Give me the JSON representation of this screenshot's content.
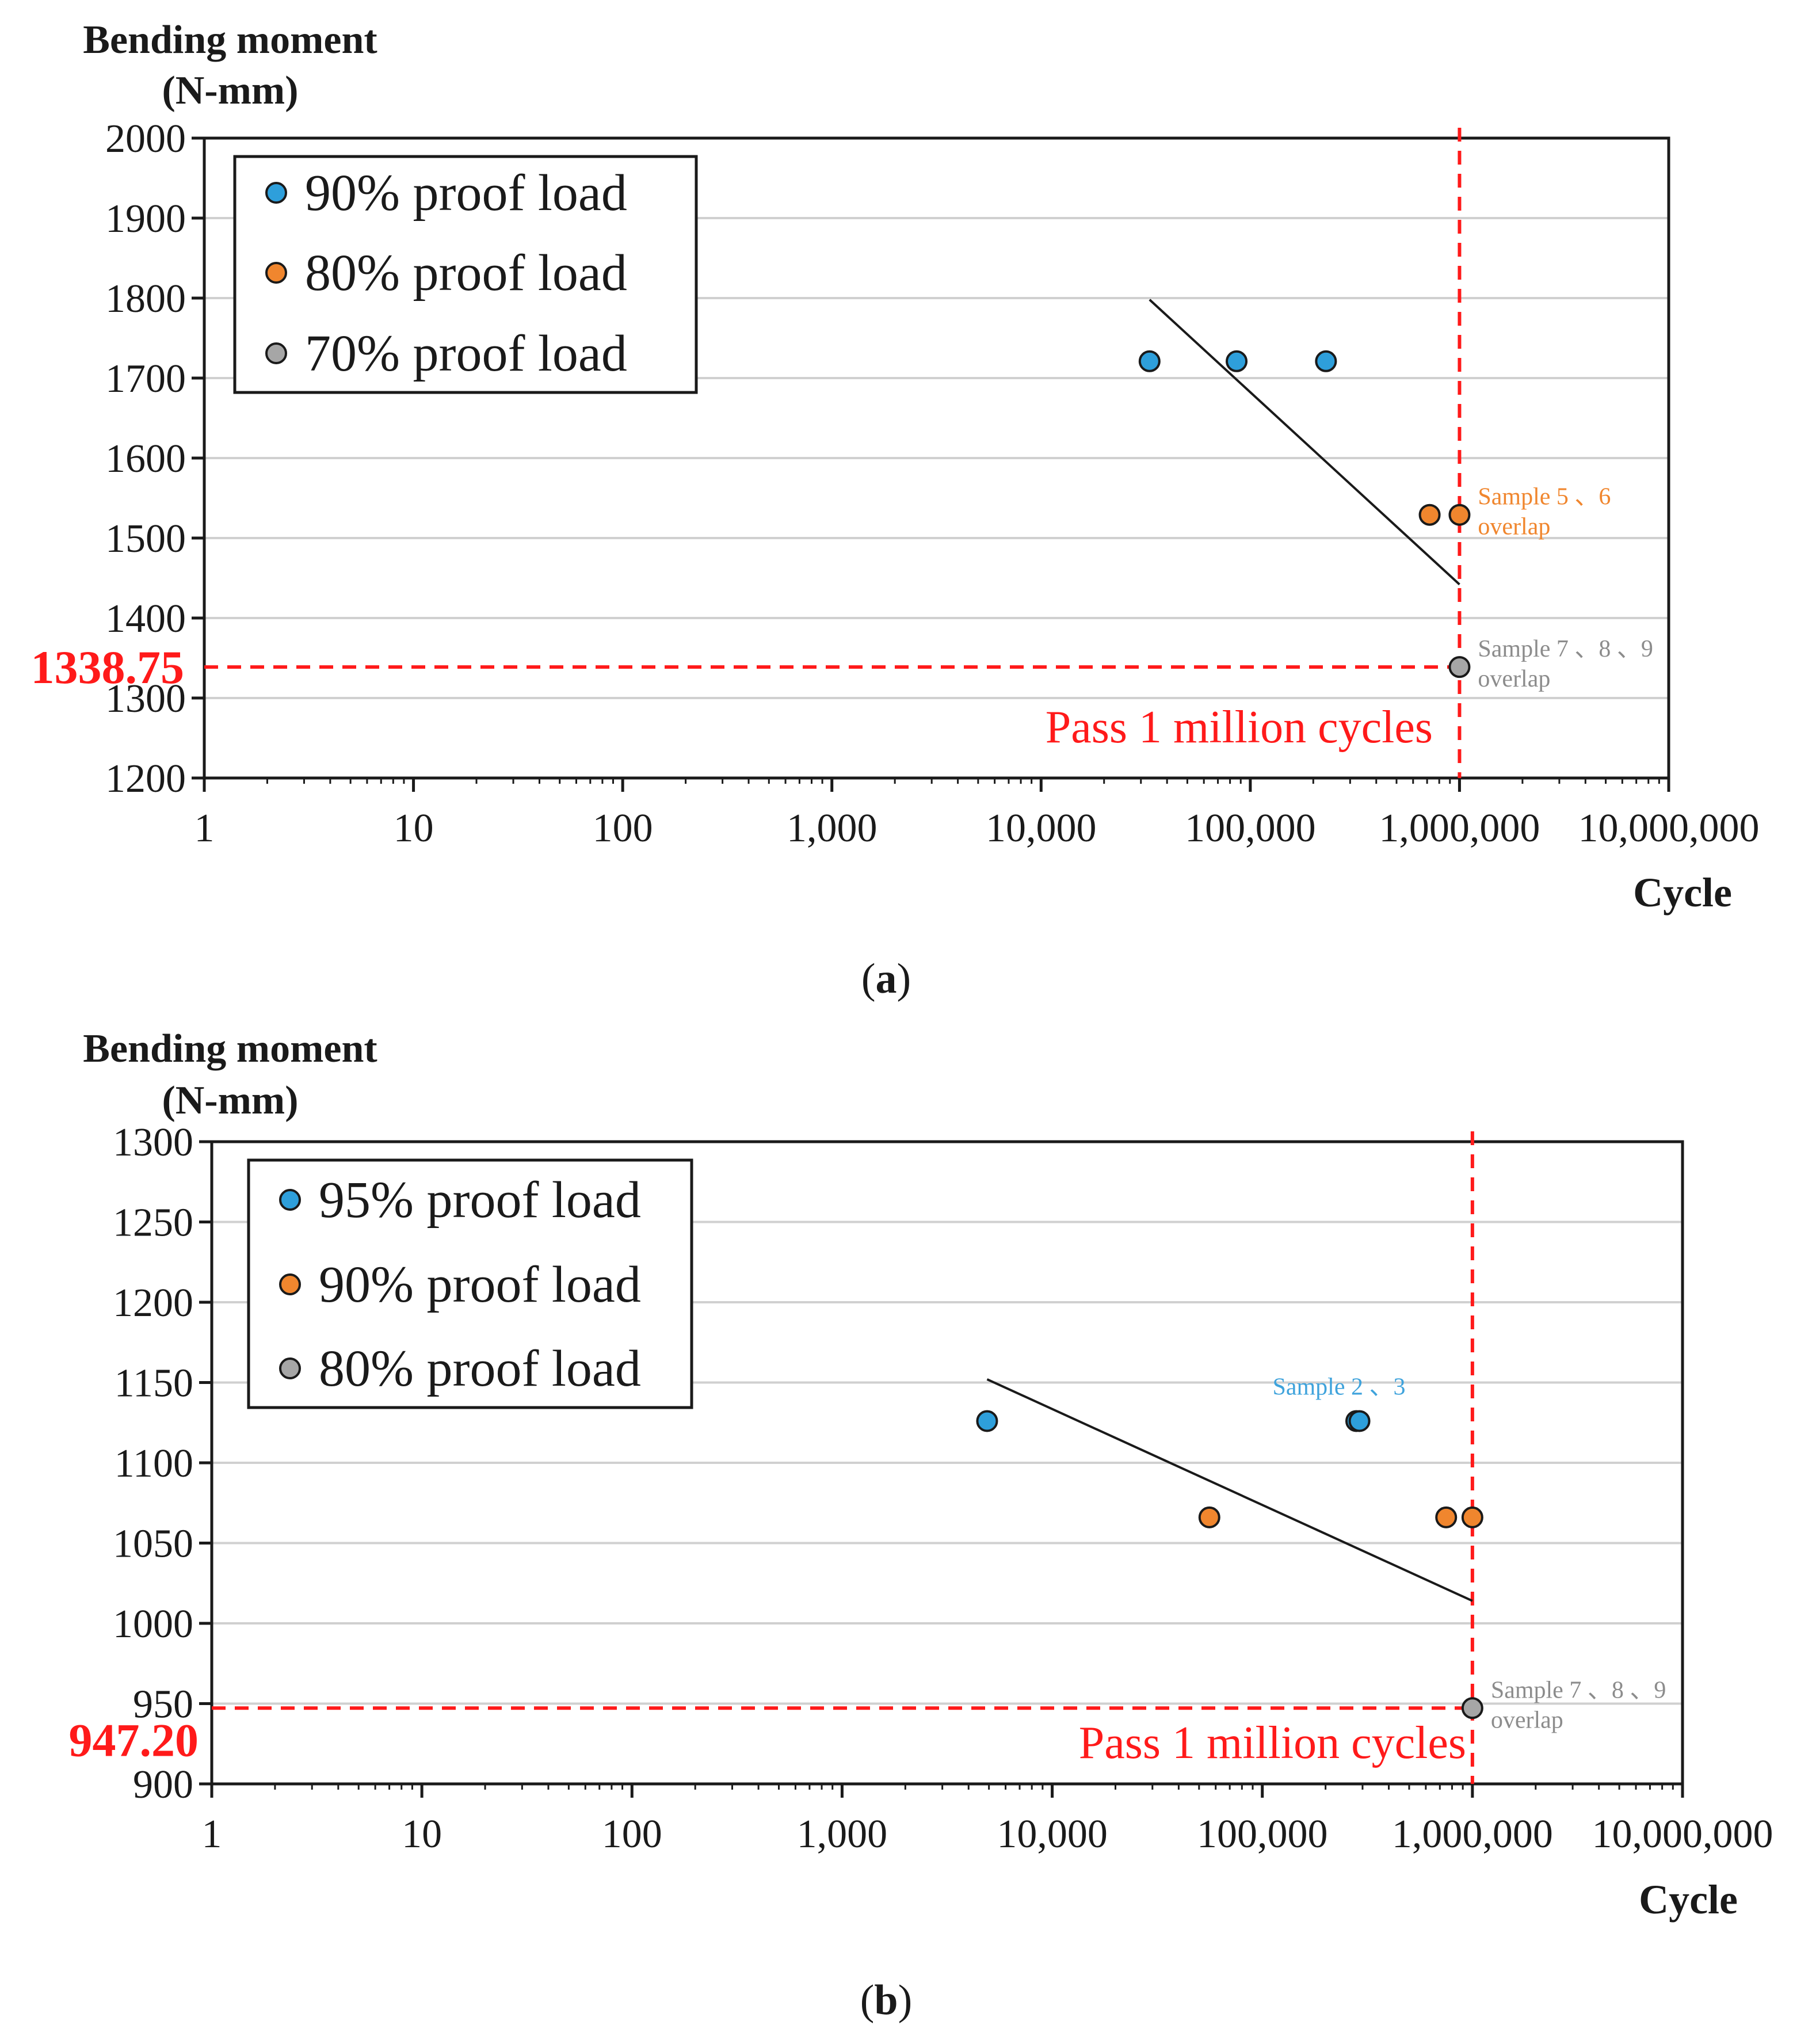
{
  "colors": {
    "blue": "#2E9FDB",
    "orange": "#F0862E",
    "gray": "#A6A6A6",
    "red": "#FF1A1A",
    "grid": "#D0D0D0",
    "trend": "#1A1A1A",
    "blue_text": "#3FA3DC",
    "orange_text": "#F0862E",
    "gray_text": "#8C8C8C"
  },
  "chart_data": [
    {
      "id": "a",
      "type": "scatter",
      "caption_open": "(",
      "caption_letter": "a",
      "caption_close": ")",
      "ylabel_line1": "Bending moment",
      "ylabel_line2": "(N-mm)",
      "xlabel": "Cycle",
      "x_scale": "log",
      "xlim": [
        1,
        10000000
      ],
      "ylim": [
        1200,
        2000
      ],
      "y_ticks": [
        "1200",
        "1300",
        "1400",
        "1500",
        "1600",
        "1700",
        "1800",
        "1900",
        "2000"
      ],
      "x_ticks": [
        "1",
        "10",
        "100",
        "1,000",
        "10,000",
        "100,000",
        "1,000,000",
        "10,000,000"
      ],
      "grid": true,
      "legend_position": "top-left",
      "series": [
        {
          "name": "90% proof load",
          "color_key": "blue",
          "points": [
            [
              33000,
              1721
            ],
            [
              86000,
              1721
            ],
            [
              230000,
              1721
            ]
          ]
        },
        {
          "name": "80% proof load",
          "color_key": "orange",
          "points": [
            [
              720000,
              1529
            ],
            [
              1000000,
              1529
            ]
          ]
        },
        {
          "name": "70% proof load",
          "color_key": "gray",
          "points": [
            [
              1000000,
              1338.75
            ]
          ]
        }
      ],
      "trendline": [
        [
          33000,
          1798
        ],
        [
          1000000,
          1442
        ]
      ],
      "threshold_value": 1338.75,
      "threshold_label": "1338.75",
      "vertical_line_x": 1000000,
      "pass_label": "Pass 1 million cycles",
      "annotations": [
        {
          "line1": "Sample 5 、6",
          "line2": "overlap",
          "color_key": "orange_text",
          "x": 1000000,
          "y": 1529
        },
        {
          "line1": "Sample 7 、8 、9",
          "line2": "overlap",
          "color_key": "gray_text",
          "x": 1000000,
          "y": 1338.75
        }
      ]
    },
    {
      "id": "b",
      "type": "scatter",
      "caption_open": "(",
      "caption_letter": "b",
      "caption_close": ")",
      "ylabel_line1": "Bending moment",
      "ylabel_line2": "(N-mm)",
      "xlabel": "Cycle",
      "x_scale": "log",
      "xlim": [
        1,
        10000000
      ],
      "ylim": [
        900,
        1300
      ],
      "y_ticks": [
        "900",
        "950",
        "1000",
        "1050",
        "1100",
        "1150",
        "1200",
        "1250",
        "1300"
      ],
      "x_ticks": [
        "1",
        "10",
        "100",
        "1,000",
        "10,000",
        "100,000",
        "1,000,000",
        "10,000,000"
      ],
      "grid": true,
      "legend_position": "top-left",
      "series": [
        {
          "name": "95% proof load",
          "color_key": "blue",
          "points": [
            [
              4900,
              1126
            ],
            [
              280000,
              1126
            ],
            [
              290000,
              1126
            ]
          ]
        },
        {
          "name": "90% proof load",
          "color_key": "orange",
          "points": [
            [
              56000,
              1066
            ],
            [
              750000,
              1066
            ],
            [
              1000000,
              1066
            ]
          ]
        },
        {
          "name": "80% proof load",
          "color_key": "gray",
          "points": [
            [
              1000000,
              947.2
            ]
          ]
        }
      ],
      "trendline": [
        [
          4900,
          1152
        ],
        [
          1000000,
          1014
        ]
      ],
      "threshold_value": 947.2,
      "threshold_label": "947.20",
      "vertical_line_x": 1000000,
      "pass_label": "Pass 1 million cycles",
      "annotations": [
        {
          "line1": "Sample 2 、3",
          "line2": "",
          "color_key": "blue_text",
          "x": 280000,
          "y": 1126
        },
        {
          "line1": "Sample 7 、8 、9",
          "line2": "overlap",
          "color_key": "gray_text",
          "x": 1000000,
          "y": 947.2
        }
      ]
    }
  ]
}
